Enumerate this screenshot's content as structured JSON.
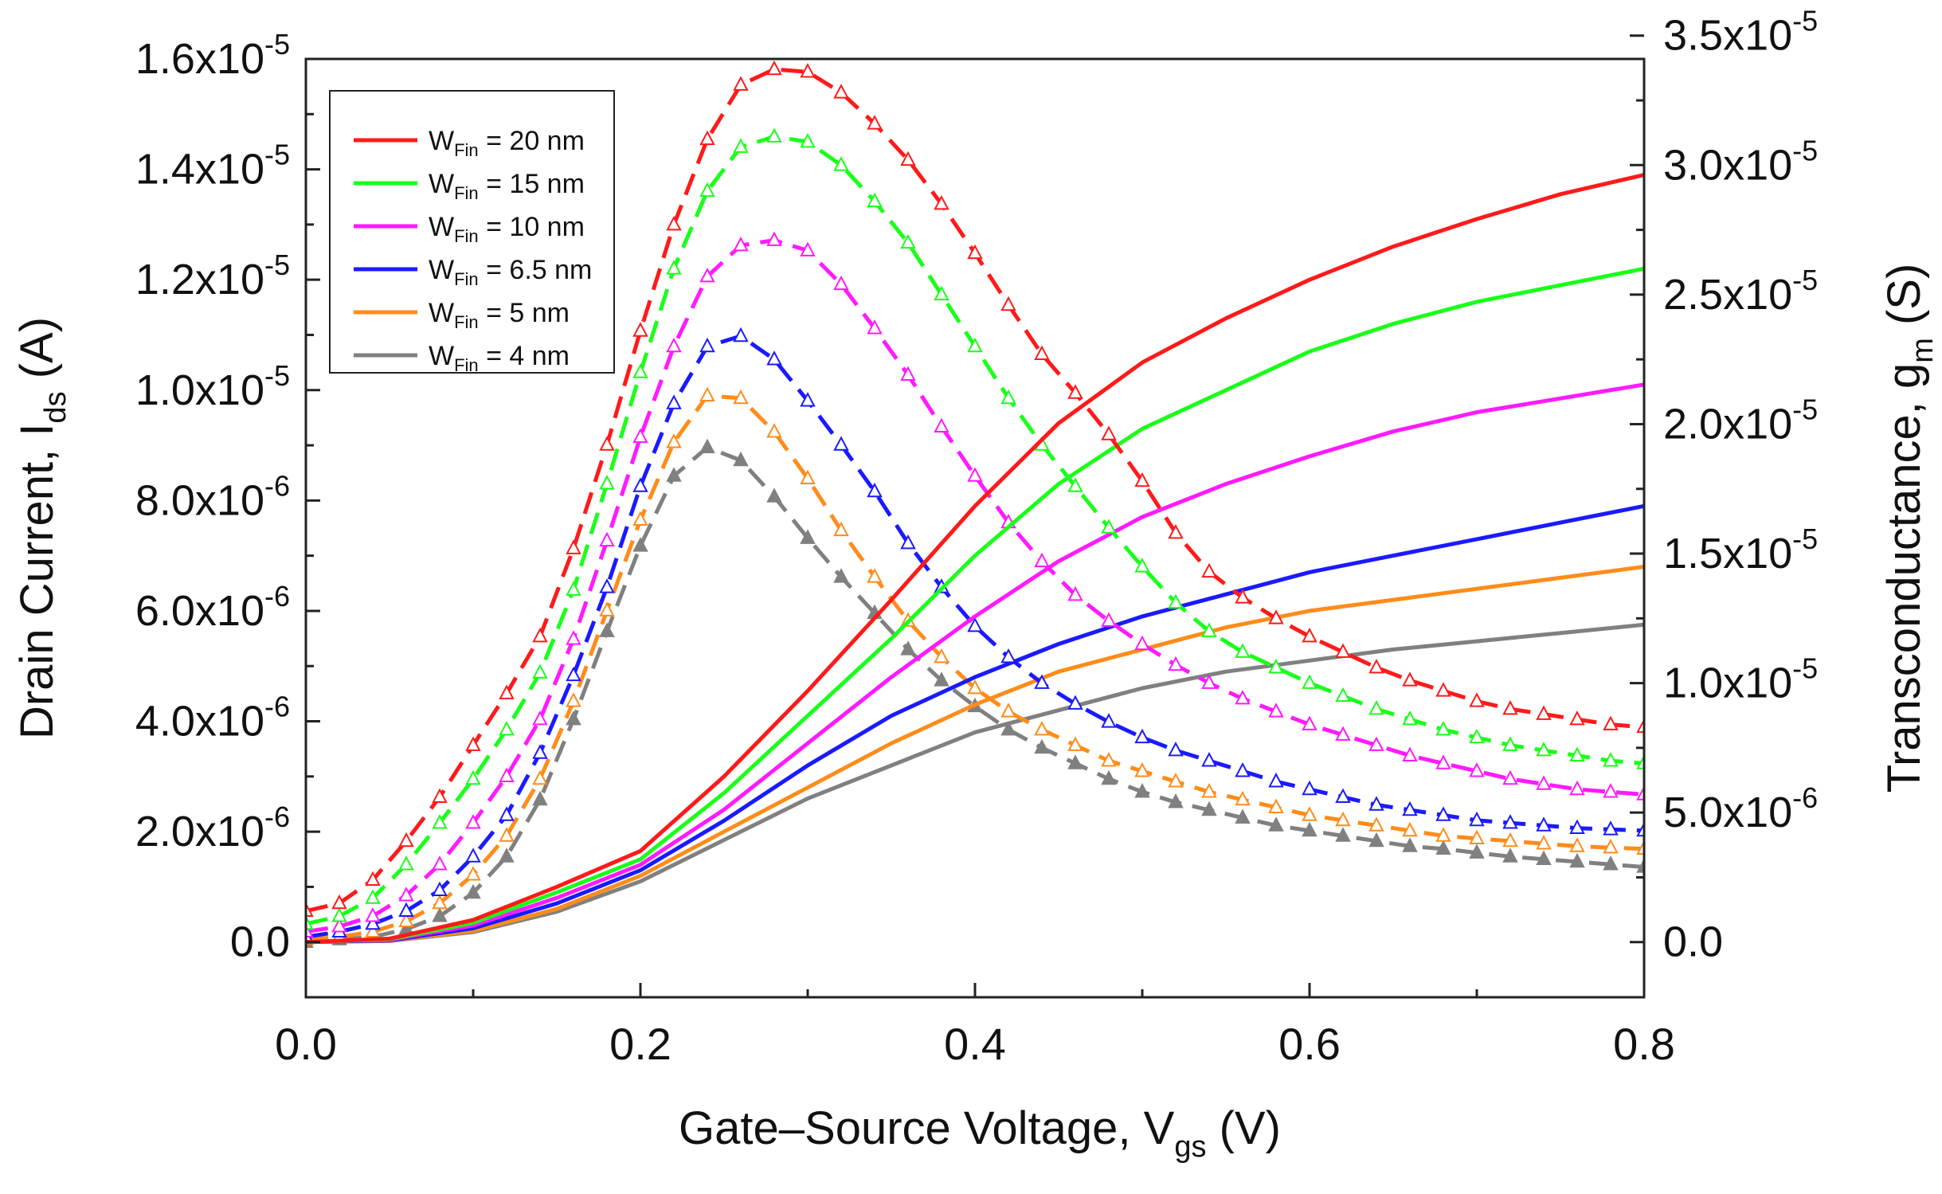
{
  "chart_data": {
    "type": "line",
    "title": "",
    "xlabel": {
      "main": "Gate–Source Voltage, V",
      "sub": "gs",
      "unit": " (V)"
    },
    "ylabel_left": {
      "main": "Drain Current, I",
      "sub": "ds",
      "unit": " (A)"
    },
    "ylabel_right": {
      "main": "Transconductance, g",
      "sub": "m",
      "unit": " (S)"
    },
    "xlim": [
      0,
      0.8
    ],
    "ylim_left": [
      -1e-06,
      1.6e-05
    ],
    "ylim_right": [
      -2.13e-06,
      3.41e-05
    ],
    "x_ticks": [
      {
        "value": 0.0,
        "label": "0.0"
      },
      {
        "value": 0.2,
        "label": "0.2"
      },
      {
        "value": 0.4,
        "label": "0.4"
      },
      {
        "value": 0.6,
        "label": "0.6"
      },
      {
        "value": 0.8,
        "label": "0.8"
      }
    ],
    "y_left_ticks": [
      {
        "value": 0,
        "label": "0.0",
        "exp": ""
      },
      {
        "value": 2e-06,
        "label": "2.0x10",
        "exp": "-6"
      },
      {
        "value": 4e-06,
        "label": "4.0x10",
        "exp": "-6"
      },
      {
        "value": 6e-06,
        "label": "6.0x10",
        "exp": "-6"
      },
      {
        "value": 8e-06,
        "label": "8.0x10",
        "exp": "-6"
      },
      {
        "value": 1e-05,
        "label": "1.0x10",
        "exp": "-5"
      },
      {
        "value": 1.2e-05,
        "label": "1.2x10",
        "exp": "-5"
      },
      {
        "value": 1.4e-05,
        "label": "1.4x10",
        "exp": "-5"
      },
      {
        "value": 1.6e-05,
        "label": "1.6x10",
        "exp": "-5"
      }
    ],
    "y_right_ticks": [
      {
        "value": 0,
        "label": "0.0",
        "exp": ""
      },
      {
        "value": 5e-06,
        "label": "5.0x10",
        "exp": "-6"
      },
      {
        "value": 1e-05,
        "label": "1.0x10",
        "exp": "-5"
      },
      {
        "value": 1.5e-05,
        "label": "1.5x10",
        "exp": "-5"
      },
      {
        "value": 2e-05,
        "label": "2.0x10",
        "exp": "-5"
      },
      {
        "value": 2.5e-05,
        "label": "2.5x10",
        "exp": "-5"
      },
      {
        "value": 3e-05,
        "label": "3.0x10",
        "exp": "-5"
      },
      {
        "value": 3.5e-05,
        "label": "3.5x10",
        "exp": "-5"
      }
    ],
    "legend_position": "top-left",
    "series": [
      {
        "name": "W_Fin = 20 nm",
        "legend_prefix": "W",
        "legend_sub": "Fin",
        "legend_suffix": " = 20 nm",
        "color": "#ff1a1a",
        "marker": "open-triangle",
        "ids": {
          "x": [
            0,
            0.05,
            0.1,
            0.15,
            0.2,
            0.25,
            0.3,
            0.35,
            0.4,
            0.45,
            0.5,
            0.55,
            0.6,
            0.65,
            0.7,
            0.75,
            0.8
          ],
          "y": [
            0,
            6e-08,
            4e-07,
            1e-06,
            1.65e-06,
            3e-06,
            4.55e-06,
            6.2e-06,
            7.9e-06,
            9.4e-06,
            1.05e-05,
            1.13e-05,
            1.2e-05,
            1.26e-05,
            1.31e-05,
            1.355e-05,
            1.39e-05
          ]
        },
        "gm": {
          "x": [
            0,
            0.02,
            0.04,
            0.06,
            0.08,
            0.1,
            0.12,
            0.14,
            0.16,
            0.18,
            0.2,
            0.22,
            0.24,
            0.26,
            0.28,
            0.3,
            0.32,
            0.34,
            0.36,
            0.38,
            0.4,
            0.42,
            0.44,
            0.46,
            0.48,
            0.5,
            0.52,
            0.54,
            0.56,
            0.58,
            0.6,
            0.62,
            0.64,
            0.66,
            0.68,
            0.7,
            0.72,
            0.74,
            0.76,
            0.78,
            0.8
          ],
          "y": [
            1.2e-06,
            1.5e-06,
            2.4e-06,
            3.9e-06,
            5.6e-06,
            7.6e-06,
            9.6e-06,
            1.18e-05,
            1.52e-05,
            1.92e-05,
            2.36e-05,
            2.77e-05,
            3.1e-05,
            3.31e-05,
            3.37e-05,
            3.36e-05,
            3.28e-05,
            3.16e-05,
            3.02e-05,
            2.85e-05,
            2.66e-05,
            2.46e-05,
            2.27e-05,
            2.12e-05,
            1.96e-05,
            1.78e-05,
            1.58e-05,
            1.43e-05,
            1.33e-05,
            1.25e-05,
            1.18e-05,
            1.12e-05,
            1.06e-05,
            1.01e-05,
            9.7e-06,
            9.3e-06,
            9e-06,
            8.8e-06,
            8.6e-06,
            8.4e-06,
            8.3e-06
          ]
        }
      },
      {
        "name": "W_Fin = 15 nm",
        "legend_prefix": "W",
        "legend_sub": "Fin",
        "legend_suffix": " = 15 nm",
        "color": "#1aff1a",
        "marker": "open-triangle",
        "ids": {
          "x": [
            0,
            0.05,
            0.1,
            0.15,
            0.2,
            0.25,
            0.3,
            0.35,
            0.4,
            0.45,
            0.5,
            0.55,
            0.6,
            0.65,
            0.7,
            0.75,
            0.8
          ],
          "y": [
            0,
            5e-08,
            3.5e-07,
            9e-07,
            1.5e-06,
            2.7e-06,
            4.1e-06,
            5.5e-06,
            7e-06,
            8.3e-06,
            9.3e-06,
            1e-05,
            1.07e-05,
            1.12e-05,
            1.16e-05,
            1.19e-05,
            1.22e-05
          ]
        },
        "gm": {
          "x": [
            0,
            0.02,
            0.04,
            0.06,
            0.08,
            0.1,
            0.12,
            0.14,
            0.16,
            0.18,
            0.2,
            0.22,
            0.24,
            0.26,
            0.28,
            0.3,
            0.32,
            0.34,
            0.36,
            0.38,
            0.4,
            0.42,
            0.44,
            0.46,
            0.48,
            0.5,
            0.52,
            0.54,
            0.56,
            0.58,
            0.6,
            0.62,
            0.64,
            0.66,
            0.68,
            0.7,
            0.72,
            0.74,
            0.76,
            0.78,
            0.8
          ],
          "y": [
            7e-07,
            1e-06,
            1.7e-06,
            3e-06,
            4.6e-06,
            6.3e-06,
            8.2e-06,
            1.04e-05,
            1.36e-05,
            1.77e-05,
            2.2e-05,
            2.6e-05,
            2.9e-05,
            3.07e-05,
            3.11e-05,
            3.09e-05,
            3e-05,
            2.86e-05,
            2.7e-05,
            2.5e-05,
            2.3e-05,
            2.1e-05,
            1.92e-05,
            1.76e-05,
            1.6e-05,
            1.45e-05,
            1.31e-05,
            1.2e-05,
            1.12e-05,
            1.06e-05,
            1e-05,
            9.5e-06,
            9e-06,
            8.6e-06,
            8.2e-06,
            7.9e-06,
            7.6e-06,
            7.4e-06,
            7.2e-06,
            7e-06,
            6.9e-06
          ]
        }
      },
      {
        "name": "W_Fin = 10 nm",
        "legend_prefix": "W",
        "legend_sub": "Fin",
        "legend_suffix": " = 10 nm",
        "color": "#ff1aff",
        "marker": "open-triangle",
        "ids": {
          "x": [
            0,
            0.05,
            0.1,
            0.15,
            0.2,
            0.25,
            0.3,
            0.35,
            0.4,
            0.45,
            0.5,
            0.55,
            0.6,
            0.65,
            0.7,
            0.75,
            0.8
          ],
          "y": [
            0,
            4e-08,
            3e-07,
            8e-07,
            1.4e-06,
            2.4e-06,
            3.6e-06,
            4.8e-06,
            5.9e-06,
            6.9e-06,
            7.7e-06,
            8.3e-06,
            8.8e-06,
            9.25e-06,
            9.6e-06,
            9.85e-06,
            1.01e-05
          ]
        },
        "gm": {
          "x": [
            0,
            0.02,
            0.04,
            0.06,
            0.08,
            0.1,
            0.12,
            0.14,
            0.16,
            0.18,
            0.2,
            0.22,
            0.24,
            0.26,
            0.28,
            0.3,
            0.32,
            0.34,
            0.36,
            0.38,
            0.4,
            0.42,
            0.44,
            0.46,
            0.48,
            0.5,
            0.52,
            0.54,
            0.56,
            0.58,
            0.6,
            0.62,
            0.64,
            0.66,
            0.68,
            0.7,
            0.72,
            0.74,
            0.76,
            0.78,
            0.8
          ],
          "y": [
            4e-07,
            6e-07,
            1e-06,
            1.8e-06,
            3e-06,
            4.6e-06,
            6.4e-06,
            8.6e-06,
            1.17e-05,
            1.55e-05,
            1.95e-05,
            2.3e-05,
            2.57e-05,
            2.69e-05,
            2.71e-05,
            2.67e-05,
            2.54e-05,
            2.37e-05,
            2.19e-05,
            1.99e-05,
            1.8e-05,
            1.62e-05,
            1.47e-05,
            1.34e-05,
            1.24e-05,
            1.15e-05,
            1.07e-05,
            1e-05,
            9.4e-06,
            8.9e-06,
            8.4e-06,
            8e-06,
            7.6e-06,
            7.2e-06,
            6.9e-06,
            6.6e-06,
            6.3e-06,
            6.1e-06,
            5.9e-06,
            5.8e-06,
            5.7e-06
          ]
        }
      },
      {
        "name": "W_Fin = 6.5 nm",
        "legend_prefix": "W",
        "legend_sub": "Fin",
        "legend_suffix": " = 6.5 nm",
        "color": "#1a1aff",
        "marker": "open-triangle",
        "ids": {
          "x": [
            0,
            0.05,
            0.1,
            0.15,
            0.2,
            0.25,
            0.3,
            0.35,
            0.4,
            0.45,
            0.5,
            0.55,
            0.6,
            0.65,
            0.7,
            0.75,
            0.8
          ],
          "y": [
            0,
            3e-08,
            2.5e-07,
            7e-07,
            1.3e-06,
            2.2e-06,
            3.2e-06,
            4.1e-06,
            4.8e-06,
            5.4e-06,
            5.9e-06,
            6.3e-06,
            6.7e-06,
            7e-06,
            7.3e-06,
            7.6e-06,
            7.9e-06
          ]
        },
        "gm": {
          "x": [
            0,
            0.02,
            0.04,
            0.06,
            0.08,
            0.1,
            0.12,
            0.14,
            0.16,
            0.18,
            0.2,
            0.22,
            0.24,
            0.26,
            0.28,
            0.3,
            0.32,
            0.34,
            0.36,
            0.38,
            0.4,
            0.42,
            0.44,
            0.46,
            0.48,
            0.5,
            0.52,
            0.54,
            0.56,
            0.58,
            0.6,
            0.62,
            0.64,
            0.66,
            0.68,
            0.7,
            0.72,
            0.74,
            0.76,
            0.78,
            0.8
          ],
          "y": [
            2e-07,
            4e-07,
            7e-07,
            1.2e-06,
            2e-06,
            3.3e-06,
            4.9e-06,
            7.3e-06,
            1.03e-05,
            1.37e-05,
            1.76e-05,
            2.08e-05,
            2.3e-05,
            2.34e-05,
            2.25e-05,
            2.09e-05,
            1.92e-05,
            1.74e-05,
            1.54e-05,
            1.37e-05,
            1.22e-05,
            1.1e-05,
            1e-05,
            9.2e-06,
            8.5e-06,
            7.9e-06,
            7.4e-06,
            7e-06,
            6.6e-06,
            6.2e-06,
            5.9e-06,
            5.6e-06,
            5.3e-06,
            5.1e-06,
            4.9e-06,
            4.7e-06,
            4.6e-06,
            4.5e-06,
            4.4e-06,
            4.35e-06,
            4.3e-06
          ]
        }
      },
      {
        "name": "W_Fin = 5 nm",
        "legend_prefix": "W",
        "legend_sub": "Fin",
        "legend_suffix": " = 5 nm",
        "color": "#ff8c1a",
        "marker": "open-triangle",
        "ids": {
          "x": [
            0,
            0.05,
            0.1,
            0.15,
            0.2,
            0.25,
            0.3,
            0.35,
            0.4,
            0.45,
            0.5,
            0.55,
            0.6,
            0.65,
            0.7,
            0.75,
            0.8
          ],
          "y": [
            0,
            2.5e-08,
            2e-07,
            6e-07,
            1.2e-06,
            2e-06,
            2.8e-06,
            3.6e-06,
            4.3e-06,
            4.9e-06,
            5.3e-06,
            5.7e-06,
            6e-06,
            6.2e-06,
            6.4e-06,
            6.6e-06,
            6.8e-06
          ]
        },
        "gm": {
          "x": [
            0,
            0.02,
            0.04,
            0.06,
            0.08,
            0.1,
            0.12,
            0.14,
            0.16,
            0.18,
            0.2,
            0.22,
            0.24,
            0.26,
            0.28,
            0.3,
            0.32,
            0.34,
            0.36,
            0.38,
            0.4,
            0.42,
            0.44,
            0.46,
            0.48,
            0.5,
            0.52,
            0.54,
            0.56,
            0.58,
            0.6,
            0.62,
            0.64,
            0.66,
            0.68,
            0.7,
            0.72,
            0.74,
            0.76,
            0.78,
            0.8
          ],
          "y": [
            1e-07,
            2e-07,
            4e-07,
            8e-07,
            1.5e-06,
            2.6e-06,
            4.1e-06,
            6.3e-06,
            9.3e-06,
            1.28e-05,
            1.63e-05,
            1.93e-05,
            2.11e-05,
            2.1e-05,
            1.97e-05,
            1.79e-05,
            1.59e-05,
            1.41e-05,
            1.24e-05,
            1.1e-05,
            9.8e-06,
            8.9e-06,
            8.2e-06,
            7.6e-06,
            7e-06,
            6.6e-06,
            6.2e-06,
            5.8e-06,
            5.5e-06,
            5.2e-06,
            4.9e-06,
            4.7e-06,
            4.5e-06,
            4.3e-06,
            4.1e-06,
            4e-06,
            3.9e-06,
            3.8e-06,
            3.7e-06,
            3.65e-06,
            3.6e-06
          ]
        }
      },
      {
        "name": "W_Fin = 4 nm",
        "legend_prefix": "W",
        "legend_sub": "Fin",
        "legend_suffix": " = 4 nm",
        "color": "#808080",
        "marker": "filled-triangle",
        "ids": {
          "x": [
            0,
            0.05,
            0.1,
            0.15,
            0.2,
            0.25,
            0.3,
            0.35,
            0.4,
            0.45,
            0.5,
            0.55,
            0.6,
            0.65,
            0.7,
            0.75,
            0.8
          ],
          "y": [
            0,
            2e-08,
            1.8e-07,
            5.5e-07,
            1.1e-06,
            1.85e-06,
            2.6e-06,
            3.2e-06,
            3.8e-06,
            4.2e-06,
            4.6e-06,
            4.9e-06,
            5.1e-06,
            5.3e-06,
            5.45e-06,
            5.6e-06,
            5.75e-06
          ]
        },
        "gm": {
          "x": [
            0,
            0.02,
            0.04,
            0.06,
            0.08,
            0.1,
            0.12,
            0.14,
            0.16,
            0.18,
            0.2,
            0.22,
            0.24,
            0.26,
            0.28,
            0.3,
            0.32,
            0.34,
            0.36,
            0.38,
            0.4,
            0.42,
            0.44,
            0.46,
            0.48,
            0.5,
            0.52,
            0.54,
            0.56,
            0.58,
            0.6,
            0.62,
            0.64,
            0.66,
            0.68,
            0.7,
            0.72,
            0.74,
            0.76,
            0.78,
            0.8
          ],
          "y": [
            0,
            1e-07,
            2e-07,
            5e-07,
            1e-06,
            1.9e-06,
            3.3e-06,
            5.5e-06,
            8.6e-06,
            1.2e-05,
            1.53e-05,
            1.8e-05,
            1.91e-05,
            1.86e-05,
            1.72e-05,
            1.56e-05,
            1.41e-05,
            1.27e-05,
            1.13e-05,
            1.01e-05,
            9.1e-06,
            8.2e-06,
            7.5e-06,
            6.9e-06,
            6.3e-06,
            5.8e-06,
            5.4e-06,
            5.1e-06,
            4.8e-06,
            4.5e-06,
            4.3e-06,
            4.1e-06,
            3.9e-06,
            3.7e-06,
            3.6e-06,
            3.45e-06,
            3.3e-06,
            3.2e-06,
            3.1e-06,
            3e-06,
            2.9e-06
          ]
        }
      }
    ]
  }
}
